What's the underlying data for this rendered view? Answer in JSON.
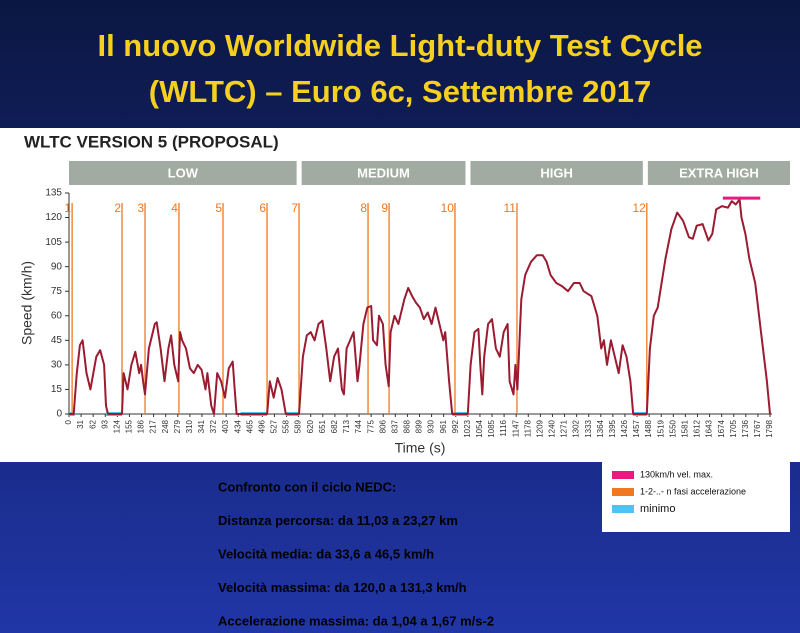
{
  "slide_title": [
    "Il nuovo Worldwide Light-duty Test Cycle",
    "(WLTC) – Euro 6c, Settembre 2017"
  ],
  "chart_data": {
    "type": "line",
    "title": "WLTC VERSION 5 (PROPOSAL)",
    "xlabel": "Time (s)",
    "ylabel": "Speed (km/h)",
    "phases": [
      {
        "name": "LOW",
        "start": 0,
        "end": 589
      },
      {
        "name": "MEDIUM",
        "start": 589,
        "end": 1022
      },
      {
        "name": "HIGH",
        "start": 1022,
        "end": 1477
      },
      {
        "name": "EXTRA HIGH",
        "start": 1477,
        "end": 1798
      }
    ],
    "xlim": [
      0,
      1798
    ],
    "ylim": [
      0,
      135
    ],
    "yticks": [
      0,
      15,
      30,
      45,
      60,
      75,
      90,
      105,
      120,
      135
    ],
    "xticks": [
      0,
      31,
      62,
      93,
      124,
      155,
      186,
      217,
      248,
      279,
      310,
      341,
      372,
      403,
      434,
      465,
      496,
      527,
      558,
      589,
      620,
      651,
      682,
      713,
      744,
      775,
      806,
      837,
      868,
      899,
      930,
      961,
      992,
      1023,
      1054,
      1085,
      1116,
      1147,
      1178,
      1209,
      1240,
      1271,
      1302,
      1333,
      1364,
      1395,
      1426,
      1457,
      1488,
      1519,
      1550,
      1581,
      1612,
      1643,
      1674,
      1705,
      1736,
      1767,
      1798
    ],
    "x": [
      0,
      12,
      20,
      28,
      35,
      45,
      55,
      70,
      80,
      90,
      95,
      100,
      136,
      140,
      150,
      160,
      170,
      180,
      185,
      190,
      195,
      205,
      220,
      225,
      235,
      245,
      255,
      262,
      270,
      280,
      285,
      290,
      300,
      310,
      320,
      330,
      340,
      350,
      355,
      365,
      372,
      380,
      390,
      400,
      410,
      420,
      425,
      430,
      508,
      515,
      525,
      535,
      545,
      556,
      590,
      600,
      610,
      620,
      630,
      640,
      650,
      660,
      670,
      680,
      690,
      700,
      705,
      712,
      730,
      740,
      745,
      755,
      765,
      775,
      780,
      790,
      795,
      805,
      812,
      820,
      825,
      835,
      845,
      860,
      870,
      880,
      890,
      900,
      910,
      920,
      930,
      940,
      950,
      960,
      965,
      975,
      983,
      1023,
      1030,
      1040,
      1050,
      1055,
      1060,
      1065,
      1075,
      1085,
      1095,
      1105,
      1115,
      1125,
      1130,
      1140,
      1145,
      1150,
      1160,
      1170,
      1185,
      1200,
      1215,
      1225,
      1235,
      1250,
      1265,
      1280,
      1295,
      1310,
      1320,
      1340,
      1355,
      1365,
      1372,
      1380,
      1390,
      1400,
      1410,
      1420,
      1430,
      1440,
      1447,
      1482,
      1490,
      1500,
      1510,
      1520,
      1530,
      1545,
      1560,
      1575,
      1590,
      1600,
      1610,
      1625,
      1640,
      1650,
      1660,
      1675,
      1690,
      1700,
      1710,
      1720,
      1725,
      1735,
      1745,
      1760,
      1775,
      1790,
      1798
    ],
    "series": [
      {
        "color": "#9b1b30",
        "values": [
          0,
          0,
          25,
          42,
          45,
          25,
          15,
          35,
          39,
          30,
          5,
          0,
          0,
          25,
          15,
          30,
          38,
          25,
          30,
          20,
          12,
          40,
          55,
          56,
          40,
          20,
          40,
          48,
          30,
          20,
          50,
          45,
          40,
          28,
          25,
          30,
          27,
          15,
          25,
          5,
          0,
          25,
          20,
          10,
          28,
          32,
          15,
          0,
          0,
          20,
          10,
          22,
          15,
          0,
          0,
          35,
          48,
          50,
          45,
          55,
          57,
          40,
          20,
          35,
          40,
          15,
          12,
          40,
          50,
          20,
          30,
          55,
          65,
          66,
          45,
          42,
          60,
          55,
          30,
          17,
          50,
          60,
          55,
          70,
          77,
          72,
          68,
          65,
          58,
          62,
          55,
          65,
          55,
          45,
          50,
          20,
          0,
          0,
          30,
          50,
          52,
          30,
          12,
          35,
          55,
          58,
          40,
          35,
          50,
          55,
          20,
          12,
          30,
          15,
          70,
          85,
          93,
          97,
          97,
          93,
          85,
          80,
          78,
          75,
          80,
          80,
          75,
          72,
          60,
          40,
          45,
          30,
          45,
          35,
          25,
          42,
          35,
          20,
          0,
          0,
          40,
          60,
          65,
          80,
          95,
          113,
          123,
          118,
          108,
          107,
          115,
          116,
          106,
          110,
          125,
          127,
          126,
          130,
          128,
          131,
          120,
          110,
          95,
          80,
          50,
          20,
          0
        ]
      }
    ],
    "markers": [
      {
        "x": 8,
        "label": "1"
      },
      {
        "x": 136,
        "label": "2"
      },
      {
        "x": 195,
        "label": "3"
      },
      {
        "x": 282,
        "label": "4"
      },
      {
        "x": 395,
        "label": "5"
      },
      {
        "x": 508,
        "label": "6"
      },
      {
        "x": 590,
        "label": "7"
      },
      {
        "x": 767,
        "label": "8"
      },
      {
        "x": 821,
        "label": "9"
      },
      {
        "x": 990,
        "label": "10"
      },
      {
        "x": 1149,
        "label": "11"
      },
      {
        "x": 1482,
        "label": "12"
      }
    ],
    "max_line": {
      "value": 130,
      "x": [
        1677,
        1773
      ]
    },
    "minimum": [
      [
        0,
        15
      ],
      [
        95,
        136
      ],
      [
        440,
        508
      ],
      [
        556,
        590
      ],
      [
        983,
        1024
      ],
      [
        1447,
        1482
      ]
    ],
    "legend": [
      {
        "label": "130km/h vel. max.",
        "color": "#e8197f"
      },
      {
        "label": "1-2-..- n  fasi accelerazione",
        "color": "#f07820"
      },
      {
        "label": "minimo",
        "color": "#4fc3f0"
      }
    ]
  },
  "notes": [
    "Confronto con il ciclo NEDC:",
    "Distanza percorsa: da 11,03 a 23,27 km",
    "Velocità media: da 33,6 a 46,5 km/h",
    "Velocità massima: da 120,0  a 131,3 km/h",
    "Accelerazione massima: da 1,04 a 1,67 m/s-2"
  ]
}
